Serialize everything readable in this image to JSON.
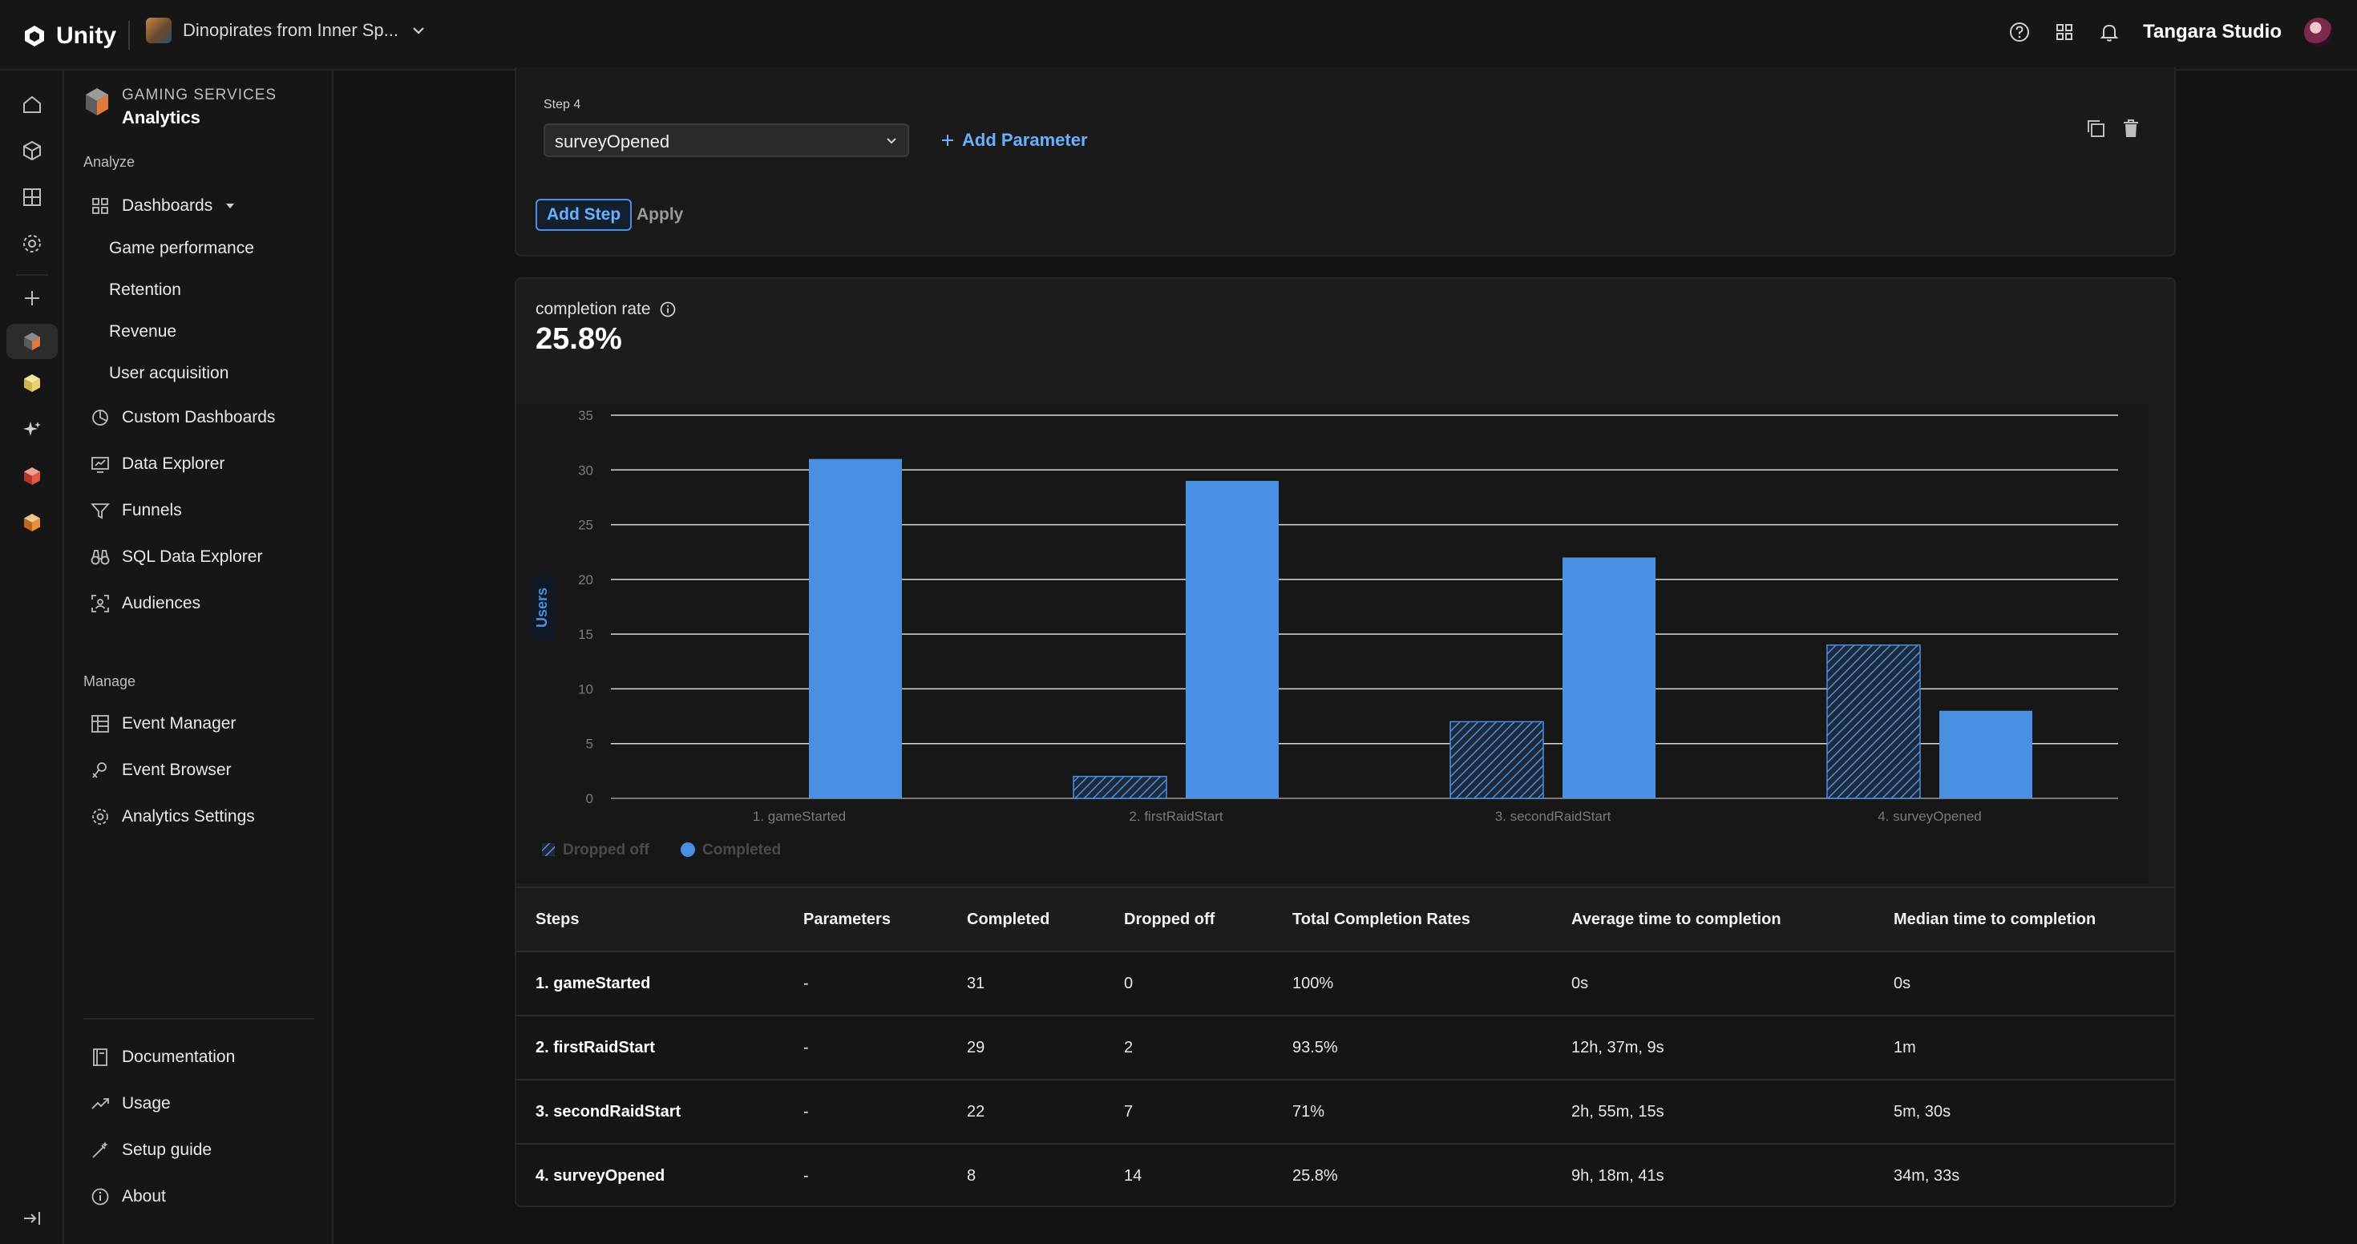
{
  "topbar": {
    "brand": "Unity",
    "project_name": "Dinopirates from Inner Sp...",
    "studio_name": "Tangara Studio"
  },
  "sidebar": {
    "service_label": "GAMING SERVICES",
    "service_name": "Analytics",
    "sections": {
      "analyze": "Analyze",
      "manage": "Manage"
    },
    "analyze_items": {
      "dashboards": "Dashboards",
      "game_performance": "Game performance",
      "retention": "Retention",
      "revenue": "Revenue",
      "user_acquisition": "User acquisition",
      "custom_dashboards": "Custom Dashboards",
      "data_explorer": "Data Explorer",
      "funnels": "Funnels",
      "sql_data_explorer": "SQL Data Explorer",
      "audiences": "Audiences"
    },
    "manage_items": {
      "event_manager": "Event Manager",
      "event_browser": "Event Browser",
      "analytics_settings": "Analytics Settings"
    },
    "footer_items": {
      "documentation": "Documentation",
      "usage": "Usage",
      "setup_guide": "Setup guide",
      "about": "About"
    }
  },
  "step_editor": {
    "step_label": "Step 4",
    "selected_event": "surveyOpened",
    "add_parameter": "Add Parameter",
    "add_step": "Add Step",
    "apply": "Apply"
  },
  "result": {
    "completion_label": "completion rate",
    "completion_value": "25.8%"
  },
  "colors": {
    "accent": "#4a90e2",
    "completed_bar": "#4a90e2",
    "dropped_hatch": "#4a90e2"
  },
  "chart_data": {
    "type": "bar",
    "categories": [
      "1. gameStarted",
      "2. firstRaidStart",
      "3. secondRaidStart",
      "4. surveyOpened"
    ],
    "series": [
      {
        "name": "Dropped off",
        "values": [
          0,
          2,
          7,
          14
        ]
      },
      {
        "name": "Completed",
        "values": [
          31,
          29,
          22,
          8
        ]
      }
    ],
    "ylabel": "Users",
    "ylim": [
      0,
      35
    ],
    "yticks": [
      0,
      5,
      10,
      15,
      20,
      25,
      30,
      35
    ],
    "grid": true,
    "legend": "bottom-left"
  },
  "table": {
    "headers": [
      "Steps",
      "Parameters",
      "Completed",
      "Dropped off",
      "Total Completion Rates",
      "Average time to completion",
      "Median time to completion"
    ],
    "rows": [
      [
        "1. gameStarted",
        "-",
        "31",
        "0",
        "100%",
        "0s",
        "0s"
      ],
      [
        "2. firstRaidStart",
        "-",
        "29",
        "2",
        "93.5%",
        "12h, 37m, 9s",
        "1m"
      ],
      [
        "3. secondRaidStart",
        "-",
        "22",
        "7",
        "71%",
        "2h, 55m, 15s",
        "5m, 30s"
      ],
      [
        "4. surveyOpened",
        "-",
        "8",
        "14",
        "25.8%",
        "9h, 18m, 41s",
        "34m, 33s"
      ]
    ]
  }
}
